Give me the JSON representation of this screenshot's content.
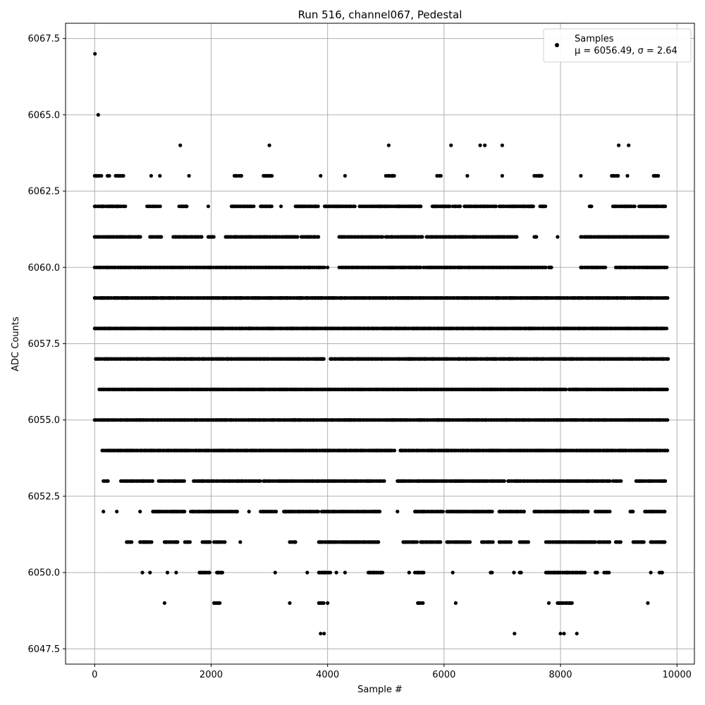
{
  "chart_data": {
    "type": "scatter",
    "title": "Run 516, channel067, Pedestal",
    "xlabel": "Sample #",
    "ylabel": "ADC Counts",
    "xlim": [
      -500,
      10300
    ],
    "ylim": [
      6047.0,
      6068.0
    ],
    "x_ticks": [
      0,
      2000,
      4000,
      6000,
      8000,
      10000
    ],
    "y_ticks": [
      6047.5,
      6050.0,
      6052.5,
      6055.0,
      6057.5,
      6060.0,
      6062.5,
      6065.0,
      6067.5
    ],
    "x_tick_labels": [
      "0",
      "2000",
      "4000",
      "6000",
      "8000",
      "10000"
    ],
    "y_tick_labels": [
      "6047.5",
      "6050.0",
      "6052.5",
      "6055.0",
      "6057.5",
      "6060.0",
      "6062.5",
      "6065.0",
      "6067.5"
    ],
    "grid": true,
    "legend": {
      "placement": "top-right",
      "entry_name": "Samples",
      "entry_stats": "μ = 6056.49, σ = 2.64"
    },
    "marker_color": "#000000",
    "series": [
      {
        "name": "Samples",
        "mean": 6056.49,
        "sigma": 2.64,
        "n_samples": 9860,
        "outliers": [
          {
            "x": 5,
            "y": 6067
          },
          {
            "x": 60,
            "y": 6065
          },
          {
            "x": 1470,
            "y": 6064
          },
          {
            "x": 3000,
            "y": 6064
          },
          {
            "x": 5050,
            "y": 6064
          },
          {
            "x": 6120,
            "y": 6064
          },
          {
            "x": 6620,
            "y": 6064
          },
          {
            "x": 6700,
            "y": 6064
          },
          {
            "x": 7000,
            "y": 6064
          },
          {
            "x": 9000,
            "y": 6064
          },
          {
            "x": 9170,
            "y": 6064
          },
          {
            "x": 3880,
            "y": 6048
          },
          {
            "x": 3940,
            "y": 6048
          },
          {
            "x": 7210,
            "y": 6048
          },
          {
            "x": 8000,
            "y": 6048
          },
          {
            "x": 8060,
            "y": 6048
          },
          {
            "x": 8280,
            "y": 6048
          }
        ],
        "level_ranges": [
          {
            "y": 6063,
            "ranges": [
              [
                0,
                130
              ],
              [
                220,
                280
              ],
              [
                360,
                500
              ],
              [
                970,
                980
              ],
              [
                1120,
                1130
              ],
              [
                1620,
                1630
              ],
              [
                2400,
                2520
              ],
              [
                2900,
                3050
              ],
              [
                3880,
                3890
              ],
              [
                4300,
                4310
              ],
              [
                5000,
                5150
              ],
              [
                5880,
                5950
              ],
              [
                6400,
                6410
              ],
              [
                7000,
                7030
              ],
              [
                7550,
                7680
              ],
              [
                8350,
                8360
              ],
              [
                8880,
                9000
              ],
              [
                9150,
                9160
              ],
              [
                9600,
                9680
              ]
            ]
          },
          {
            "y": 6062,
            "ranges": [
              [
                0,
                550
              ],
              [
                900,
                1150
              ],
              [
                1450,
                1600
              ],
              [
                1950,
                1960
              ],
              [
                2350,
                2750
              ],
              [
                2850,
                3050
              ],
              [
                3200,
                3210
              ],
              [
                3450,
                3850
              ],
              [
                3950,
                4480
              ],
              [
                4550,
                5600
              ],
              [
                5800,
                6100
              ],
              [
                6150,
                6300
              ],
              [
                6350,
                6900
              ],
              [
                6950,
                7550
              ],
              [
                7650,
                7750
              ],
              [
                8500,
                8550
              ],
              [
                8900,
                9300
              ],
              [
                9350,
                9800
              ]
            ]
          },
          {
            "y": 6061,
            "ranges": [
              [
                0,
                800
              ],
              [
                950,
                1150
              ],
              [
                1350,
                1850
              ],
              [
                1950,
                2050
              ],
              [
                2250,
                3500
              ],
              [
                3550,
                3850
              ],
              [
                4200,
                4950
              ],
              [
                5000,
                5650
              ],
              [
                5700,
                7250
              ],
              [
                7550,
                7600
              ],
              [
                7950,
                7960
              ],
              [
                8350,
                9850
              ]
            ]
          },
          {
            "y": 6060,
            "ranges": [
              [
                0,
                3950
              ],
              [
                4000,
                4010
              ],
              [
                4200,
                5600
              ],
              [
                5650,
                7750
              ],
              [
                7800,
                7850
              ],
              [
                8350,
                8800
              ],
              [
                8950,
                9850
              ]
            ]
          },
          {
            "y": 6059,
            "ranges": [
              [
                0,
                9850
              ]
            ]
          },
          {
            "y": 6058,
            "ranges": [
              [
                0,
                9850
              ]
            ]
          },
          {
            "y": 6057,
            "ranges": [
              [
                20,
                3950
              ],
              [
                4050,
                9850
              ]
            ]
          },
          {
            "y": 6056,
            "ranges": [
              [
                80,
                8100
              ],
              [
                8150,
                9850
              ]
            ]
          },
          {
            "y": 6055,
            "ranges": [
              [
                0,
                9850
              ]
            ]
          },
          {
            "y": 6054,
            "ranges": [
              [
                130,
                5150
              ],
              [
                5250,
                9850
              ]
            ]
          },
          {
            "y": 6053,
            "ranges": [
              [
                150,
                250
              ],
              [
                450,
                1000
              ],
              [
                1100,
                1550
              ],
              [
                1700,
                2850
              ],
              [
                2900,
                5000
              ],
              [
                5200,
                7050
              ],
              [
                7100,
                8850
              ],
              [
                8900,
                9050
              ],
              [
                9300,
                9800
              ]
            ]
          },
          {
            "y": 6052,
            "ranges": [
              [
                150,
                160
              ],
              [
                380,
                390
              ],
              [
                780,
                790
              ],
              [
                1000,
                1550
              ],
              [
                1650,
                2450
              ],
              [
                2650,
                2660
              ],
              [
                2850,
                3150
              ],
              [
                3250,
                3850
              ],
              [
                3900,
                4900
              ],
              [
                5200,
                5210
              ],
              [
                5500,
                6000
              ],
              [
                6050,
                6850
              ],
              [
                6950,
                7400
              ],
              [
                7550,
                8500
              ],
              [
                8600,
                8850
              ],
              [
                9200,
                9250
              ],
              [
                9450,
                9800
              ]
            ]
          },
          {
            "y": 6051,
            "ranges": [
              [
                550,
                650
              ],
              [
                780,
                980
              ],
              [
                1200,
                1450
              ],
              [
                1550,
                1650
              ],
              [
                1850,
                2000
              ],
              [
                2050,
                2250
              ],
              [
                2500,
                2510
              ],
              [
                3350,
                3450
              ],
              [
                3850,
                4900
              ],
              [
                5300,
                5550
              ],
              [
                5600,
                5950
              ],
              [
                6050,
                6450
              ],
              [
                6650,
                6850
              ],
              [
                6950,
                7150
              ],
              [
                7300,
                7450
              ],
              [
                7750,
                8600
              ],
              [
                8650,
                8850
              ],
              [
                8950,
                9050
              ],
              [
                9250,
                9450
              ],
              [
                9550,
                9800
              ]
            ]
          },
          {
            "y": 6050,
            "ranges": [
              [
                820,
                830
              ],
              [
                950,
                960
              ],
              [
                1250,
                1260
              ],
              [
                1400,
                1410
              ],
              [
                1800,
                2000
              ],
              [
                2100,
                2200
              ],
              [
                3100,
                3110
              ],
              [
                3650,
                3660
              ],
              [
                3850,
                4050
              ],
              [
                4150,
                4160
              ],
              [
                4300,
                4310
              ],
              [
                4700,
                4950
              ],
              [
                5400,
                5410
              ],
              [
                5500,
                5650
              ],
              [
                6150,
                6160
              ],
              [
                6800,
                6850
              ],
              [
                7200,
                7210
              ],
              [
                7300,
                7350
              ],
              [
                7750,
                8450
              ],
              [
                8600,
                8650
              ],
              [
                8750,
                8850
              ],
              [
                9550,
                9560
              ],
              [
                9700,
                9750
              ]
            ]
          },
          {
            "y": 6049,
            "ranges": [
              [
                1200,
                1210
              ],
              [
                2050,
                2150
              ],
              [
                3350,
                3360
              ],
              [
                3850,
                3950
              ],
              [
                4000,
                4010
              ],
              [
                5550,
                5650
              ],
              [
                6200,
                6210
              ],
              [
                7800,
                7810
              ],
              [
                7950,
                8200
              ],
              [
                9500,
                9510
              ]
            ]
          }
        ]
      }
    ]
  }
}
